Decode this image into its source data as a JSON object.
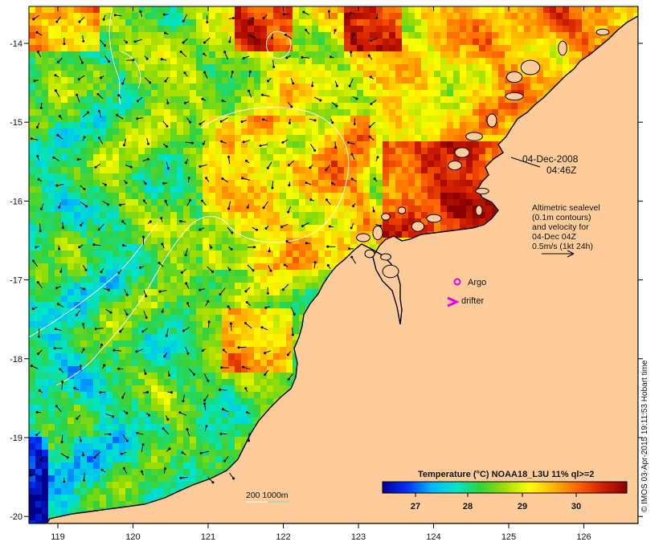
{
  "map": {
    "lon_labels": [
      "119",
      "120",
      "121",
      "122",
      "123",
      "124",
      "125",
      "126"
    ],
    "lat_labels": [
      "-14",
      "-15",
      "-16",
      "-17",
      "-18",
      "-19",
      "-20"
    ],
    "datetime": {
      "date": "04-Dec-2008",
      "time": "04:46Z"
    },
    "altimetry_note": [
      "Altimetric sealevel",
      "(0.1m contours)",
      "and velocity for",
      "04-Dec 04Z",
      "0.5m/s (1kt 24h)"
    ],
    "legend": {
      "argo": "Argo",
      "drifter": "drifter"
    },
    "bathymetry_label": "200  1000m",
    "colorbar": {
      "title": "Temperature (°C) NOAA18_L3U 11% ql>=2",
      "tick_labels": [
        "27",
        "28",
        "29",
        "30"
      ],
      "colors": [
        "#00008c",
        "#0030ff",
        "#00b4ff",
        "#00e6c8",
        "#32d23c",
        "#a0dc00",
        "#ffff00",
        "#ffb400",
        "#ff6400",
        "#d21e00",
        "#8c0000"
      ]
    },
    "credit": "© IMOS 03-Apr-2015 19:11:53 Hobart time",
    "colors": {
      "land": "#fecc9a",
      "coast": "#000000",
      "contour": "#ffffff",
      "argo": "#e600e6",
      "drifter": "#e600e6"
    }
  }
}
